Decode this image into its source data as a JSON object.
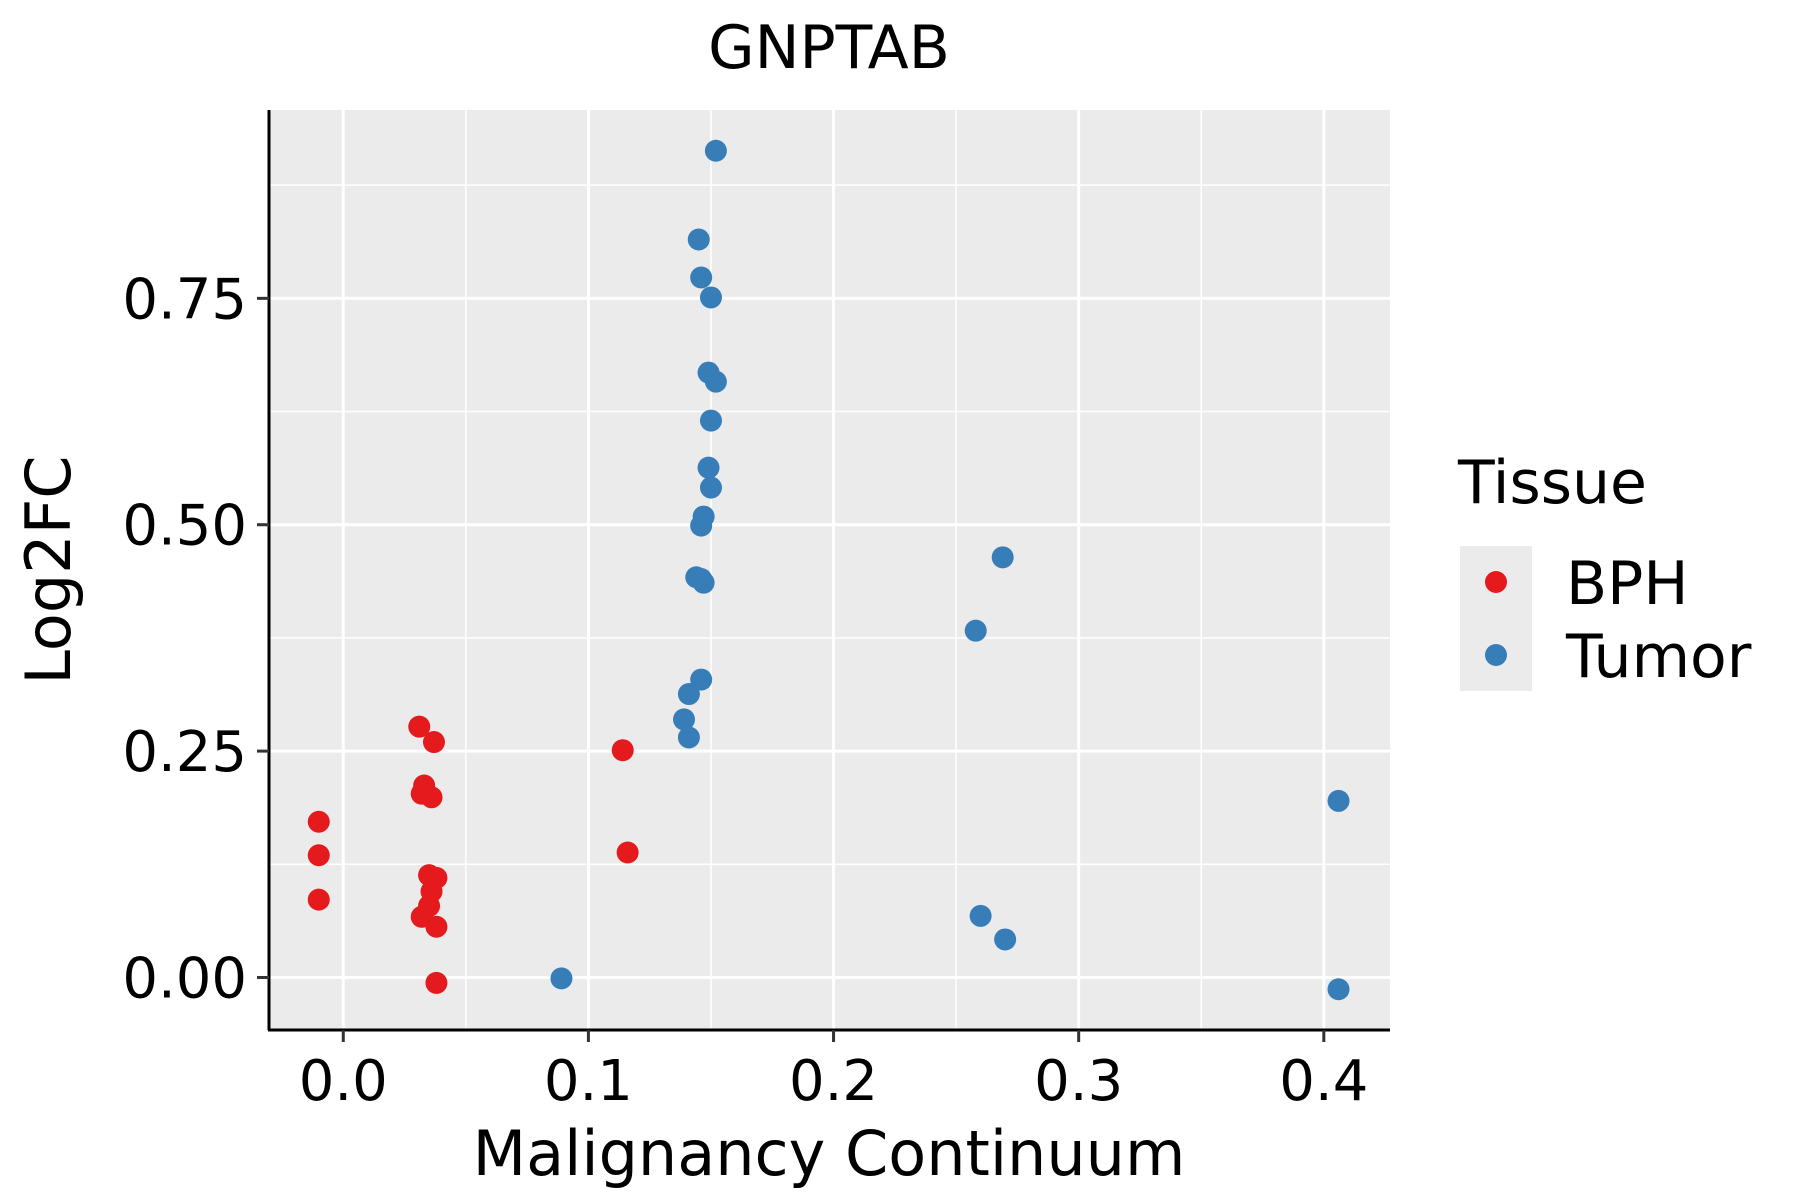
{
  "chart_data": {
    "type": "scatter",
    "title": "GNPTAB",
    "xlabel": "Malignancy Continuum",
    "ylabel": "Log2FC",
    "xlim": [
      -0.0303,
      0.427
    ],
    "ylim": [
      -0.058,
      0.958
    ],
    "xticks": [
      0.0,
      0.1,
      0.2,
      0.3,
      0.4
    ],
    "xtick_labels": [
      "0.0",
      "0.1",
      "0.2",
      "0.3",
      "0.4"
    ],
    "yticks": [
      0.0,
      0.25,
      0.5,
      0.75
    ],
    "ytick_labels": [
      "0.00",
      "0.25",
      "0.50",
      "0.75"
    ],
    "grid": true,
    "legend": {
      "title": "Tissue",
      "placement": "right"
    },
    "series": [
      {
        "name": "BPH",
        "color": "#E41A1C",
        "points": [
          [
            -0.01,
            0.172
          ],
          [
            -0.01,
            0.135
          ],
          [
            -0.01,
            0.086
          ],
          [
            0.031,
            0.277
          ],
          [
            0.037,
            0.26
          ],
          [
            0.033,
            0.212
          ],
          [
            0.032,
            0.203
          ],
          [
            0.036,
            0.199
          ],
          [
            0.035,
            0.113
          ],
          [
            0.038,
            0.11
          ],
          [
            0.036,
            0.095
          ],
          [
            0.035,
            0.079
          ],
          [
            0.032,
            0.067
          ],
          [
            0.038,
            0.056
          ],
          [
            0.038,
            -0.006
          ],
          [
            0.114,
            0.251
          ],
          [
            0.116,
            0.138
          ]
        ]
      },
      {
        "name": "Tumor",
        "color": "#377EB8",
        "points": [
          [
            0.089,
            -0.001
          ],
          [
            0.152,
            0.913
          ],
          [
            0.145,
            0.815
          ],
          [
            0.146,
            0.773
          ],
          [
            0.15,
            0.751
          ],
          [
            0.149,
            0.668
          ],
          [
            0.152,
            0.658
          ],
          [
            0.15,
            0.615
          ],
          [
            0.149,
            0.563
          ],
          [
            0.15,
            0.541
          ],
          [
            0.147,
            0.509
          ],
          [
            0.146,
            0.499
          ],
          [
            0.144,
            0.442
          ],
          [
            0.146,
            0.44
          ],
          [
            0.147,
            0.436
          ],
          [
            0.146,
            0.329
          ],
          [
            0.141,
            0.313
          ],
          [
            0.139,
            0.285
          ],
          [
            0.141,
            0.265
          ],
          [
            0.269,
            0.464
          ],
          [
            0.258,
            0.383
          ],
          [
            0.26,
            0.068
          ],
          [
            0.27,
            0.042
          ],
          [
            0.406,
            0.195
          ],
          [
            0.406,
            -0.013
          ]
        ]
      }
    ]
  }
}
